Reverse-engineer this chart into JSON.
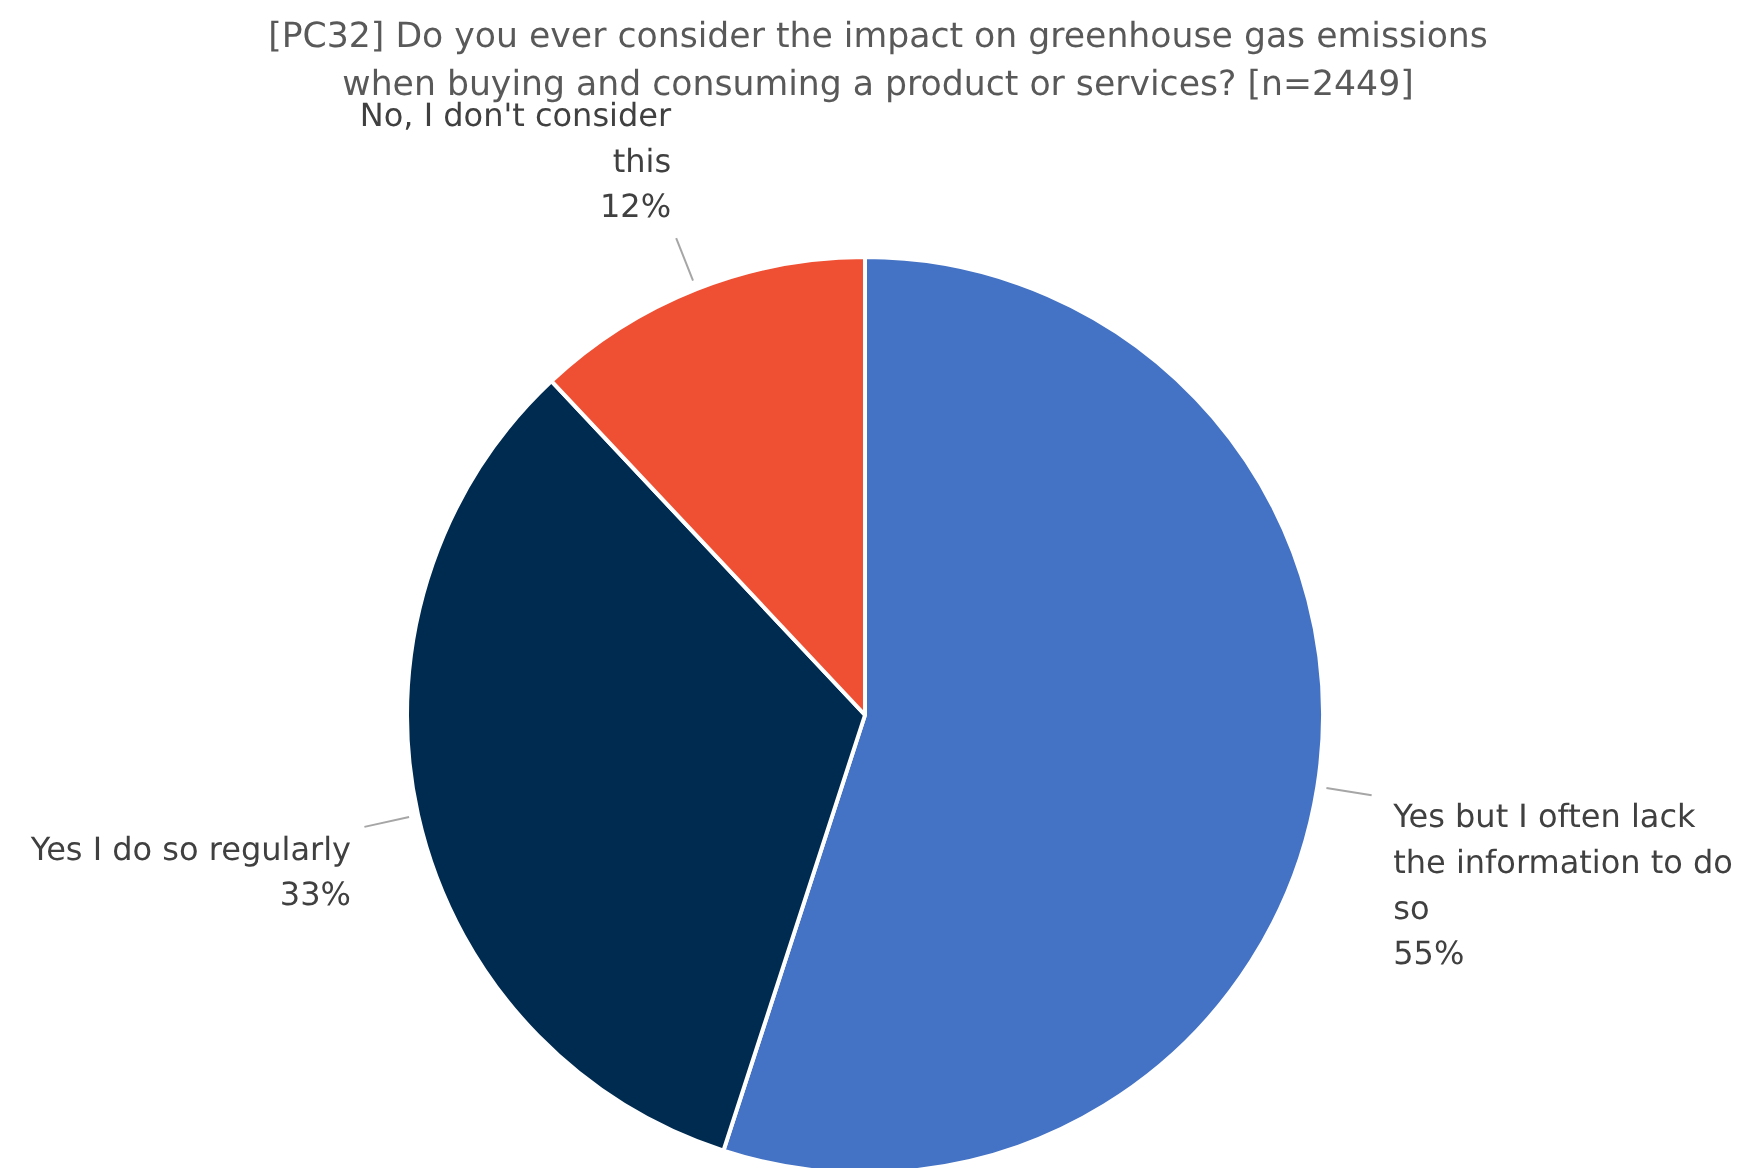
{
  "chart_data": {
    "type": "pie",
    "title": "[PC32] Do you ever consider the impact on greenhouse gas emissions when buying and consuming a product or services? [n=2449]",
    "categories": [
      "Yes but I often lack the information to do so",
      "Yes I do so regularly",
      "No, I don't consider this"
    ],
    "values": [
      55,
      33,
      12
    ],
    "colors": [
      "#4472c4",
      "#002b50",
      "#ef5033"
    ],
    "value_labels": [
      "55%",
      "33%",
      "12%"
    ],
    "legend": false
  }
}
